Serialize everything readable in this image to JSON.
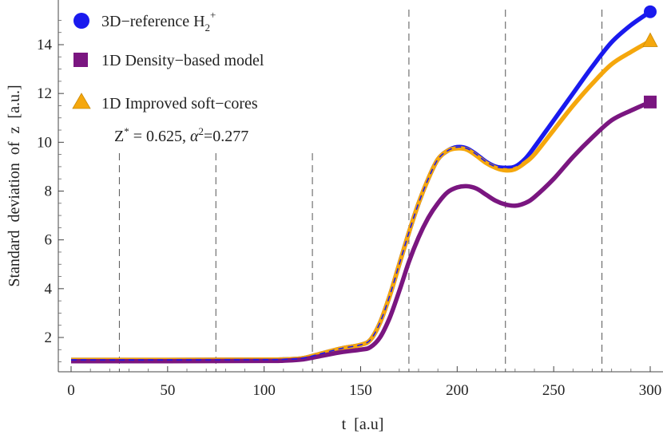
{
  "chart_data": {
    "type": "line",
    "xlabel": "t  [a.u]",
    "ylabel": "Standard  deviation  of  z  [a.u.]",
    "xlim": [
      -4,
      302
    ],
    "ylim": [
      0.5,
      15.6
    ],
    "xticks": [
      0,
      50,
      100,
      150,
      200,
      250,
      300
    ],
    "yticks": [
      2,
      4,
      6,
      8,
      10,
      12,
      14
    ],
    "vlines": [
      25,
      75,
      125,
      175,
      225,
      275
    ],
    "grid": false,
    "legend_position": "top-left",
    "annotation": {
      "part1": "Z",
      "sup1": "*",
      "part2": " = 0.625, ",
      "alpha": "α",
      "sup2": "2",
      "part3": "=0.277"
    },
    "series": [
      {
        "name": "3D−reference H2+",
        "name_main": "3D−reference H",
        "name_sub": "2",
        "name_sup": "+",
        "color": "#1a1aee",
        "marker": "circle",
        "x": [
          0,
          50,
          100,
          110,
          120,
          130,
          140,
          150,
          155,
          160,
          165,
          170,
          175,
          180,
          185,
          190,
          195,
          200,
          205,
          210,
          215,
          220,
          225,
          230,
          235,
          240,
          250,
          260,
          270,
          280,
          290,
          300
        ],
        "y": [
          1.08,
          1.08,
          1.09,
          1.1,
          1.15,
          1.35,
          1.55,
          1.7,
          1.9,
          2.6,
          3.7,
          5.0,
          6.3,
          7.5,
          8.5,
          9.3,
          9.65,
          9.8,
          9.75,
          9.5,
          9.2,
          9.0,
          8.95,
          9.0,
          9.3,
          9.8,
          10.9,
          12.0,
          13.1,
          14.1,
          14.8,
          15.35
        ]
      },
      {
        "name": "1D Density−based model",
        "color": "#7a1680",
        "marker": "square",
        "x": [
          0,
          50,
          100,
          110,
          120,
          130,
          140,
          150,
          155,
          160,
          165,
          170,
          175,
          180,
          185,
          190,
          195,
          200,
          205,
          210,
          215,
          220,
          225,
          230,
          235,
          240,
          250,
          260,
          270,
          280,
          290,
          300
        ],
        "y": [
          1.03,
          1.03,
          1.04,
          1.05,
          1.1,
          1.25,
          1.4,
          1.5,
          1.6,
          2.0,
          2.8,
          3.9,
          5.1,
          6.1,
          6.9,
          7.5,
          7.95,
          8.15,
          8.2,
          8.1,
          7.85,
          7.6,
          7.45,
          7.4,
          7.5,
          7.75,
          8.5,
          9.4,
          10.2,
          10.9,
          11.3,
          11.65
        ]
      },
      {
        "name": "1D Improved soft−cores",
        "color": "#f5a70c",
        "marker": "triangle",
        "x": [
          0,
          50,
          100,
          110,
          120,
          130,
          140,
          150,
          155,
          160,
          165,
          170,
          175,
          180,
          185,
          190,
          195,
          200,
          205,
          210,
          215,
          220,
          225,
          230,
          235,
          240,
          250,
          260,
          270,
          280,
          290,
          300
        ],
        "y": [
          1.08,
          1.08,
          1.09,
          1.1,
          1.15,
          1.35,
          1.55,
          1.7,
          1.9,
          2.6,
          3.7,
          5.0,
          6.3,
          7.5,
          8.5,
          9.3,
          9.65,
          9.75,
          9.7,
          9.45,
          9.15,
          8.95,
          8.85,
          8.9,
          9.15,
          9.5,
          10.5,
          11.5,
          12.4,
          13.2,
          13.7,
          14.15
        ]
      }
    ]
  }
}
